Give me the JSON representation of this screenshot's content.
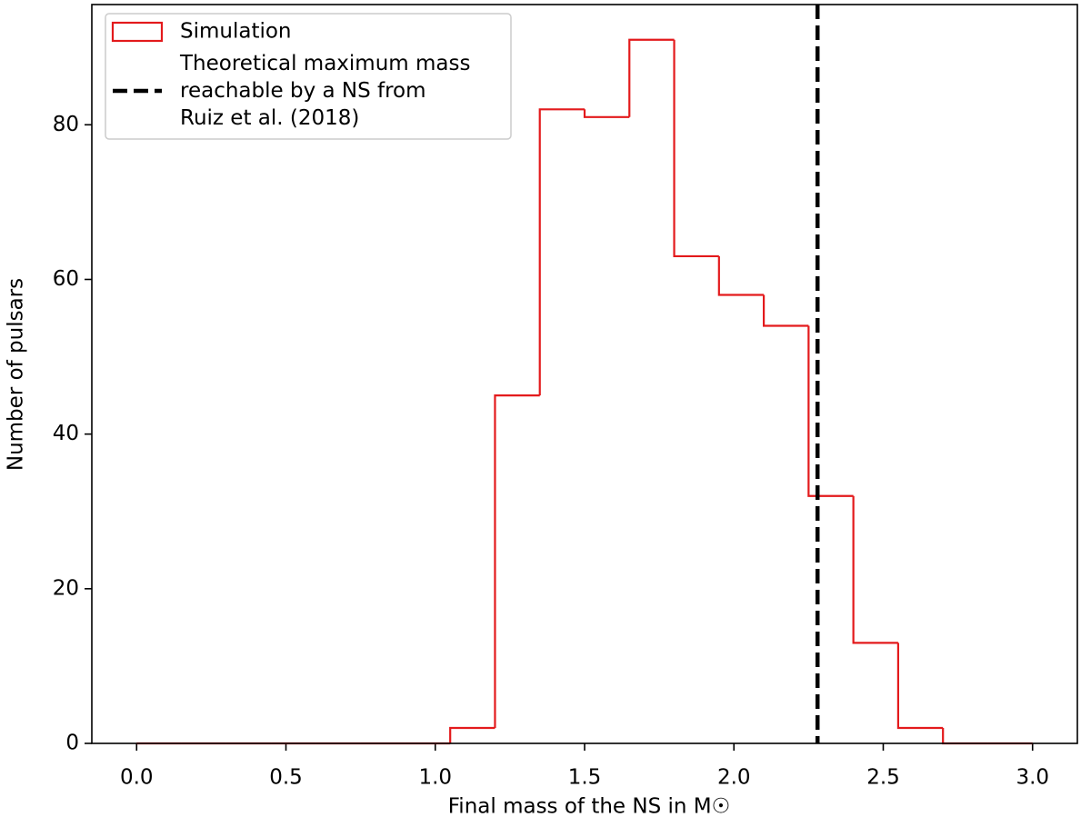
{
  "chart_data": {
    "type": "histogram",
    "xlabel": "Final mass of the NS in M☉",
    "ylabel": "Number of pulsars",
    "bins": [
      0,
      0.15,
      0.3,
      0.45,
      0.6,
      0.75,
      0.9,
      1.05,
      1.2,
      1.35,
      1.5,
      1.65,
      1.8,
      1.95,
      2.1,
      2.25,
      2.4,
      2.55,
      2.7,
      2.85,
      3.0
    ],
    "series": [
      {
        "name": "Simulation",
        "color": "#e31a1c",
        "values": [
          0,
          0,
          0,
          0,
          0,
          0,
          0,
          2,
          45,
          82,
          81,
          91,
          63,
          58,
          54,
          32,
          13,
          2,
          0,
          0
        ]
      }
    ],
    "vlines": [
      {
        "name": "Theoretical maximum mass\nreachable by a NS from\nRuiz et al. (2018)",
        "x": 2.28,
        "color": "#000000"
      }
    ],
    "xlim": [
      -0.15,
      3.15
    ],
    "ylim": [
      0,
      95.55
    ],
    "xticks": [
      {
        "value": 0,
        "label": "0.0"
      },
      {
        "value": 0.5,
        "label": "0.5"
      },
      {
        "value": 1,
        "label": "1.0"
      },
      {
        "value": 1.5,
        "label": "1.5"
      },
      {
        "value": 2,
        "label": "2.0"
      },
      {
        "value": 2.5,
        "label": "2.5"
      },
      {
        "value": 3,
        "label": "3.0"
      }
    ],
    "yticks": [
      0,
      20,
      40,
      60,
      80
    ],
    "legend": "upper left"
  }
}
